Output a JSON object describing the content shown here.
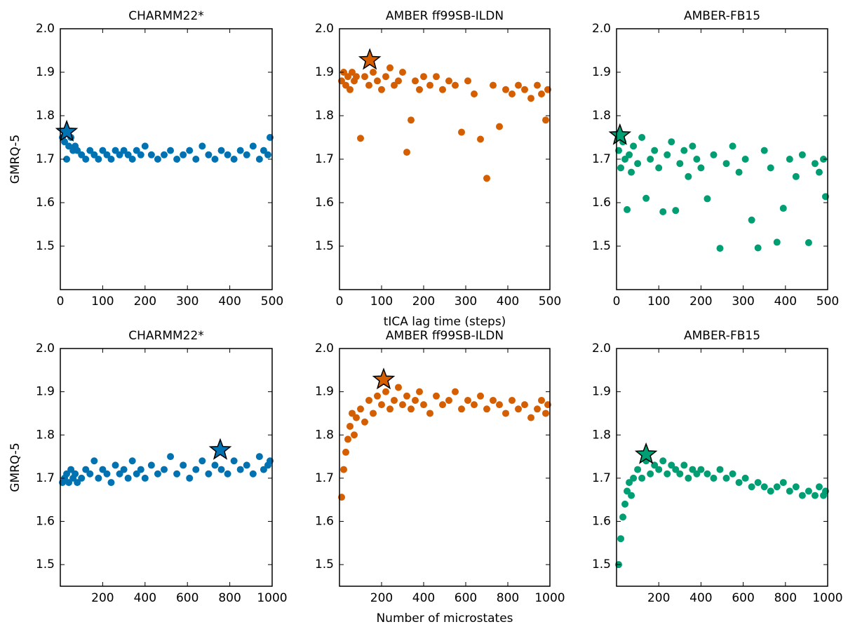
{
  "chart_data": [
    {
      "type": "scatter",
      "title": "CHARMM22*",
      "ylabel": "GMRQ-5",
      "color": "#0072b2",
      "x": [
        5,
        10,
        15,
        20,
        25,
        30,
        35,
        40,
        50,
        60,
        70,
        80,
        90,
        100,
        110,
        120,
        130,
        140,
        150,
        160,
        170,
        180,
        190,
        200,
        215,
        230,
        245,
        260,
        275,
        290,
        305,
        320,
        335,
        350,
        365,
        380,
        395,
        410,
        425,
        440,
        455,
        470,
        480,
        490,
        495
      ],
      "values": [
        1.75,
        1.74,
        1.7,
        1.73,
        1.75,
        1.72,
        1.73,
        1.72,
        1.71,
        1.7,
        1.72,
        1.71,
        1.7,
        1.72,
        1.71,
        1.7,
        1.72,
        1.71,
        1.72,
        1.71,
        1.7,
        1.72,
        1.71,
        1.73,
        1.71,
        1.7,
        1.71,
        1.72,
        1.7,
        1.71,
        1.72,
        1.7,
        1.73,
        1.71,
        1.7,
        1.72,
        1.71,
        1.7,
        1.72,
        1.71,
        1.73,
        1.7,
        1.72,
        1.71,
        1.75
      ],
      "highlight": {
        "x": 15,
        "y": 1.763
      },
      "xlim": [
        0,
        500
      ],
      "xticks": [
        0,
        100,
        200,
        300,
        400,
        500
      ],
      "ylim": [
        1.4,
        2.0
      ],
      "yticks": [
        1.5,
        1.6,
        1.7,
        1.8,
        1.9,
        {
          "value": 2,
          "label": "2.0"
        }
      ]
    },
    {
      "type": "scatter",
      "title": "AMBER ff99SB-ILDN",
      "xlabel": "tICA lag time (steps)",
      "color": "#d55e00",
      "x": [
        5,
        10,
        15,
        20,
        25,
        30,
        35,
        40,
        50,
        60,
        70,
        80,
        90,
        100,
        110,
        120,
        130,
        140,
        150,
        160,
        170,
        180,
        190,
        200,
        215,
        230,
        245,
        260,
        275,
        290,
        305,
        320,
        335,
        350,
        365,
        380,
        395,
        410,
        425,
        440,
        455,
        470,
        480,
        490,
        495
      ],
      "values": [
        1.88,
        1.9,
        1.87,
        1.89,
        1.86,
        1.9,
        1.88,
        1.89,
        1.748,
        1.89,
        1.87,
        1.9,
        1.88,
        1.86,
        1.89,
        1.91,
        1.87,
        1.88,
        1.9,
        1.716,
        1.79,
        1.88,
        1.86,
        1.89,
        1.87,
        1.89,
        1.86,
        1.88,
        1.87,
        1.762,
        1.88,
        1.85,
        1.746,
        1.656,
        1.87,
        1.775,
        1.86,
        1.85,
        1.87,
        1.86,
        1.84,
        1.87,
        1.85,
        1.79,
        1.86
      ],
      "highlight": {
        "x": 72,
        "y": 1.928
      },
      "xlim": [
        0,
        500
      ],
      "xticks": [
        0,
        100,
        200,
        300,
        400,
        500
      ],
      "ylim": [
        1.4,
        2.0
      ],
      "yticks": [
        1.5,
        1.6,
        1.7,
        1.8,
        1.9,
        {
          "value": 2,
          "label": "2.0"
        }
      ]
    },
    {
      "type": "scatter",
      "title": "AMBER-FB15",
      "color": "#009e73",
      "x": [
        5,
        10,
        15,
        20,
        25,
        30,
        35,
        40,
        50,
        60,
        70,
        80,
        90,
        100,
        110,
        120,
        130,
        140,
        150,
        160,
        170,
        180,
        190,
        200,
        215,
        230,
        245,
        260,
        275,
        290,
        305,
        320,
        335,
        350,
        365,
        380,
        395,
        410,
        425,
        440,
        455,
        470,
        480,
        490,
        495
      ],
      "values": [
        1.72,
        1.68,
        1.74,
        1.7,
        1.584,
        1.71,
        1.67,
        1.73,
        1.69,
        1.75,
        1.61,
        1.7,
        1.72,
        1.68,
        1.579,
        1.71,
        1.74,
        1.582,
        1.69,
        1.72,
        1.66,
        1.73,
        1.7,
        1.68,
        1.609,
        1.71,
        1.495,
        1.69,
        1.73,
        1.67,
        1.7,
        1.56,
        1.496,
        1.72,
        1.68,
        1.509,
        1.587,
        1.7,
        1.66,
        1.71,
        1.508,
        1.69,
        1.67,
        1.7,
        1.614
      ],
      "highlight": {
        "x": 8,
        "y": 1.755
      },
      "xlim": [
        0,
        500
      ],
      "xticks": [
        0,
        100,
        200,
        300,
        400,
        500
      ],
      "ylim": [
        1.4,
        2.0
      ],
      "yticks": [
        1.5,
        1.6,
        1.7,
        1.8,
        1.9,
        {
          "value": 2,
          "label": "2.0"
        }
      ]
    },
    {
      "type": "scatter",
      "title": "CHARMM22*",
      "ylabel": "GMRQ-5",
      "color": "#0072b2",
      "x": [
        10,
        20,
        30,
        40,
        50,
        60,
        70,
        80,
        100,
        120,
        140,
        160,
        180,
        200,
        220,
        240,
        260,
        280,
        300,
        320,
        340,
        360,
        380,
        400,
        430,
        460,
        490,
        520,
        550,
        580,
        610,
        640,
        670,
        700,
        730,
        760,
        790,
        820,
        850,
        880,
        910,
        940,
        960,
        980,
        990
      ],
      "values": [
        1.69,
        1.7,
        1.71,
        1.69,
        1.72,
        1.7,
        1.71,
        1.69,
        1.7,
        1.72,
        1.71,
        1.74,
        1.7,
        1.72,
        1.71,
        1.69,
        1.73,
        1.71,
        1.72,
        1.7,
        1.74,
        1.71,
        1.72,
        1.7,
        1.73,
        1.71,
        1.72,
        1.75,
        1.71,
        1.73,
        1.7,
        1.72,
        1.74,
        1.71,
        1.73,
        1.72,
        1.71,
        1.74,
        1.72,
        1.73,
        1.71,
        1.75,
        1.72,
        1.73,
        1.74
      ],
      "highlight": {
        "x": 755,
        "y": 1.765
      },
      "xlim": [
        0,
        1000
      ],
      "xticks": [
        200,
        400,
        600,
        800,
        1000
      ],
      "ylim": [
        1.45,
        2.0
      ],
      "yticks": [
        1.5,
        1.6,
        1.7,
        1.8,
        1.9,
        {
          "value": 2,
          "label": "2.0"
        }
      ]
    },
    {
      "type": "scatter",
      "title": "AMBER ff99SB-ILDN",
      "xlabel": "Number of microstates",
      "color": "#d55e00",
      "x": [
        10,
        20,
        30,
        40,
        50,
        60,
        70,
        80,
        100,
        120,
        140,
        160,
        180,
        200,
        220,
        240,
        260,
        280,
        300,
        320,
        340,
        360,
        380,
        400,
        430,
        460,
        490,
        520,
        550,
        580,
        610,
        640,
        670,
        700,
        730,
        760,
        790,
        820,
        850,
        880,
        910,
        940,
        960,
        980,
        990
      ],
      "values": [
        1.656,
        1.72,
        1.76,
        1.79,
        1.82,
        1.85,
        1.8,
        1.84,
        1.86,
        1.83,
        1.88,
        1.85,
        1.89,
        1.87,
        1.9,
        1.86,
        1.88,
        1.91,
        1.87,
        1.89,
        1.86,
        1.88,
        1.9,
        1.87,
        1.85,
        1.89,
        1.87,
        1.88,
        1.9,
        1.86,
        1.88,
        1.87,
        1.89,
        1.86,
        1.88,
        1.87,
        1.85,
        1.88,
        1.86,
        1.87,
        1.84,
        1.86,
        1.88,
        1.85,
        1.87
      ],
      "highlight": {
        "x": 210,
        "y": 1.928
      },
      "xlim": [
        0,
        1000
      ],
      "xticks": [
        200,
        400,
        600,
        800,
        1000
      ],
      "ylim": [
        1.45,
        2.0
      ],
      "yticks": [
        1.5,
        1.6,
        1.7,
        1.8,
        1.9,
        {
          "value": 2,
          "label": "2.0"
        }
      ]
    },
    {
      "type": "scatter",
      "title": "AMBER-FB15",
      "color": "#009e73",
      "x": [
        10,
        20,
        30,
        40,
        50,
        60,
        70,
        80,
        100,
        120,
        140,
        160,
        180,
        200,
        220,
        240,
        260,
        280,
        300,
        320,
        340,
        360,
        380,
        400,
        430,
        460,
        490,
        520,
        550,
        580,
        610,
        640,
        670,
        700,
        730,
        760,
        790,
        820,
        850,
        880,
        910,
        940,
        960,
        980,
        990
      ],
      "values": [
        1.5,
        1.56,
        1.61,
        1.64,
        1.67,
        1.69,
        1.66,
        1.7,
        1.72,
        1.7,
        1.74,
        1.71,
        1.73,
        1.72,
        1.74,
        1.71,
        1.73,
        1.72,
        1.71,
        1.73,
        1.7,
        1.72,
        1.71,
        1.72,
        1.71,
        1.7,
        1.72,
        1.7,
        1.71,
        1.69,
        1.7,
        1.68,
        1.69,
        1.68,
        1.67,
        1.68,
        1.69,
        1.67,
        1.68,
        1.66,
        1.67,
        1.66,
        1.68,
        1.66,
        1.67
      ],
      "highlight": {
        "x": 140,
        "y": 1.755
      },
      "xlim": [
        0,
        1000
      ],
      "xticks": [
        200,
        400,
        600,
        800,
        1000
      ],
      "ylim": [
        1.45,
        2.0
      ],
      "yticks": [
        1.5,
        1.6,
        1.7,
        1.8,
        1.9,
        {
          "value": 2,
          "label": "2.0"
        }
      ]
    }
  ]
}
